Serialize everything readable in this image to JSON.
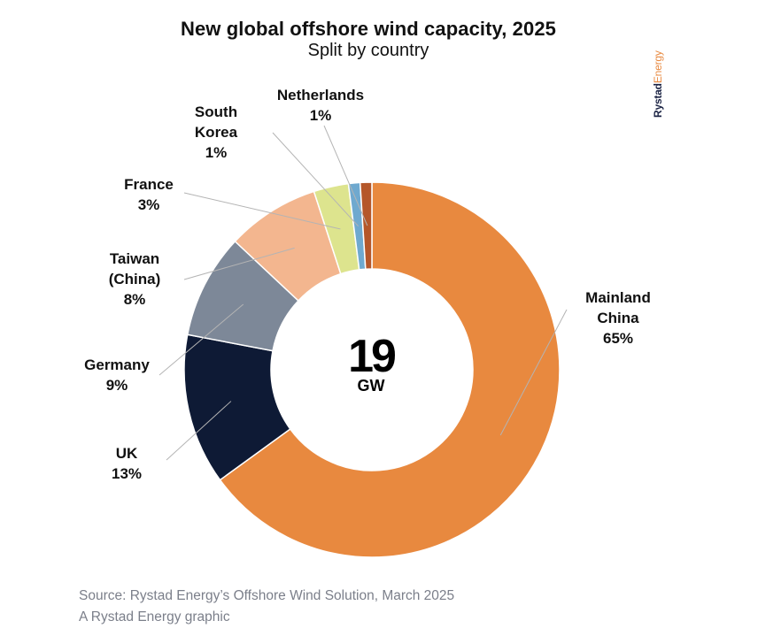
{
  "title": "New global offshore wind capacity, 2025",
  "subtitle": "Split by country",
  "brand": {
    "part1": "Rystad",
    "part2": "Energy"
  },
  "center": {
    "value": "19",
    "unit": "GW"
  },
  "source_line1": "Source: Rystad Energy’s Offshore Wind Solution, March 2025",
  "source_line2": "A Rystad Energy graphic",
  "chart_data": {
    "type": "pie",
    "style": "donut",
    "unit": "%",
    "slices": [
      {
        "label": "Mainland China",
        "label_lines": [
          "Mainland",
          "China"
        ],
        "display": "65%",
        "value": 65,
        "color": "#e8893f"
      },
      {
        "label": "UK",
        "label_lines": [
          "UK"
        ],
        "display": "13%",
        "value": 13,
        "color": "#0e1a35"
      },
      {
        "label": "Germany",
        "label_lines": [
          "Germany"
        ],
        "display": "9%",
        "value": 9,
        "color": "#7d8898"
      },
      {
        "label": "Taiwan (China)",
        "label_lines": [
          "Taiwan",
          "(China)"
        ],
        "display": "8%",
        "value": 8,
        "color": "#f3b68f"
      },
      {
        "label": "France",
        "label_lines": [
          "France"
        ],
        "display": "3%",
        "value": 3,
        "color": "#dde48e"
      },
      {
        "label": "South Korea",
        "label_lines": [
          "South",
          "Korea"
        ],
        "display": "1%",
        "value": 1,
        "color": "#6fa9cf"
      },
      {
        "label": "Netherlands",
        "label_lines": [
          "Netherlands"
        ],
        "display": "1%",
        "value": 1,
        "color": "#b5572a"
      }
    ]
  }
}
